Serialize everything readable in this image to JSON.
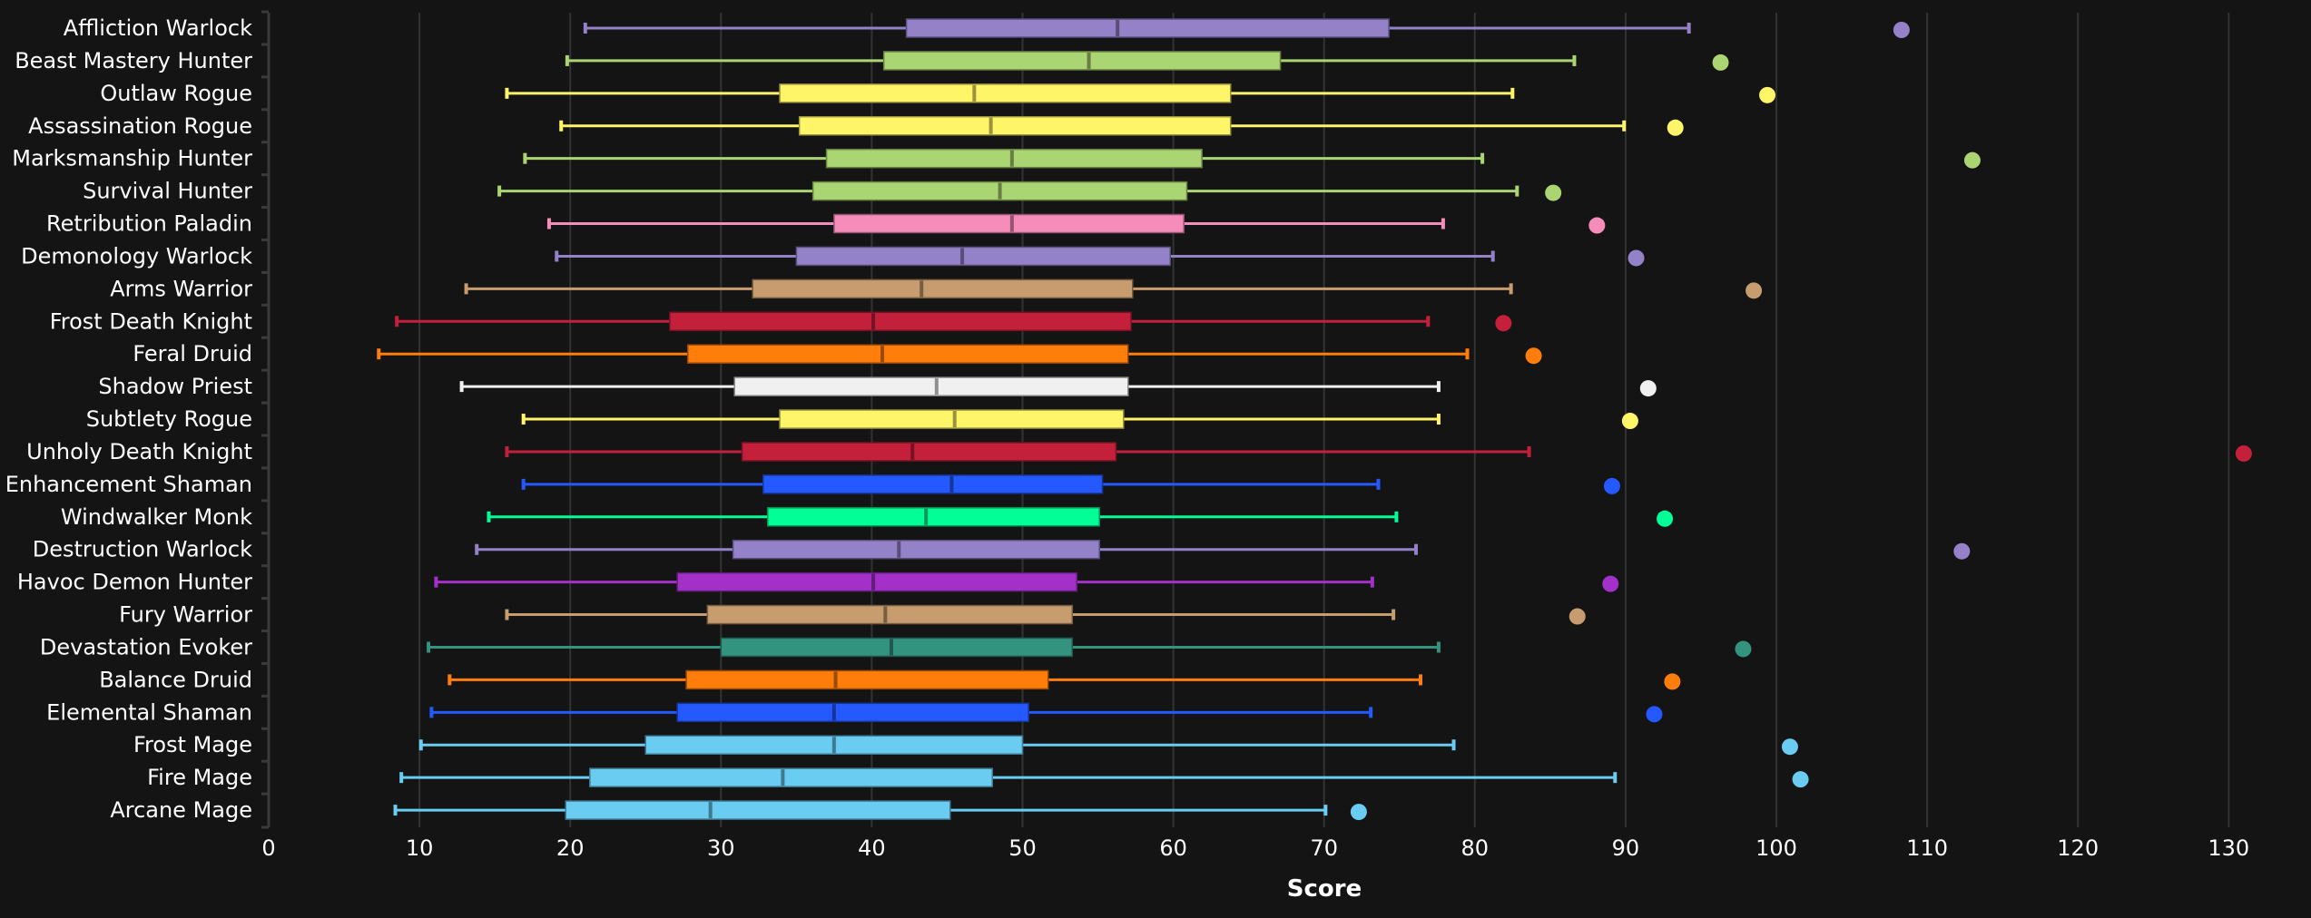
{
  "chart_data": {
    "type": "boxplot",
    "title": "",
    "xlabel": "Score",
    "ylabel": "",
    "xlim": [
      0,
      133
    ],
    "xticks": [
      0,
      10,
      20,
      30,
      40,
      50,
      60,
      70,
      80,
      90,
      100,
      110,
      120,
      130
    ],
    "grid": true,
    "legend": "none",
    "series": [
      {
        "name": "Affliction Warlock",
        "color": "#9482c9",
        "min": 21.0,
        "q1": 42.3,
        "median": 56.3,
        "q3": 74.3,
        "max": 94.2,
        "outlier": 108.3
      },
      {
        "name": "Beast Mastery Hunter",
        "color": "#abd473",
        "min": 19.8,
        "q1": 40.8,
        "median": 54.4,
        "q3": 67.1,
        "max": 86.6,
        "outlier": 96.3
      },
      {
        "name": "Outlaw Rogue",
        "color": "#fff569",
        "min": 15.8,
        "q1": 33.9,
        "median": 46.8,
        "q3": 63.8,
        "max": 82.5,
        "outlier": 99.4
      },
      {
        "name": "Assassination Rogue",
        "color": "#fff569",
        "min": 19.4,
        "q1": 35.2,
        "median": 47.9,
        "q3": 63.8,
        "max": 89.9,
        "outlier": 93.3
      },
      {
        "name": "Marksmanship Hunter",
        "color": "#abd473",
        "min": 17.0,
        "q1": 37.0,
        "median": 49.3,
        "q3": 61.9,
        "max": 80.5,
        "outlier": 113.0
      },
      {
        "name": "Survival Hunter",
        "color": "#abd473",
        "min": 15.3,
        "q1": 36.1,
        "median": 48.5,
        "q3": 60.9,
        "max": 82.8,
        "outlier": 85.2
      },
      {
        "name": "Retribution Paladin",
        "color": "#f58cba",
        "min": 18.6,
        "q1": 37.5,
        "median": 49.3,
        "q3": 60.7,
        "max": 77.9,
        "outlier": 88.1
      },
      {
        "name": "Demonology Warlock",
        "color": "#9482c9",
        "min": 19.1,
        "q1": 35.0,
        "median": 46.0,
        "q3": 59.8,
        "max": 81.2,
        "outlier": 90.7
      },
      {
        "name": "Arms Warrior",
        "color": "#c79c6e",
        "min": 13.1,
        "q1": 32.1,
        "median": 43.3,
        "q3": 57.3,
        "max": 82.4,
        "outlier": 98.5
      },
      {
        "name": "Frost Death Knight",
        "color": "#c41f3b",
        "min": 8.5,
        "q1": 26.6,
        "median": 40.1,
        "q3": 57.2,
        "max": 76.9,
        "outlier": 81.9
      },
      {
        "name": "Feral Druid",
        "color": "#ff7d0a",
        "min": 7.3,
        "q1": 27.8,
        "median": 40.7,
        "q3": 57.0,
        "max": 79.5,
        "outlier": 83.9
      },
      {
        "name": "Shadow Priest",
        "color": "#f0f0f0",
        "min": 12.8,
        "q1": 30.9,
        "median": 44.3,
        "q3": 57.0,
        "max": 77.6,
        "outlier": 91.5
      },
      {
        "name": "Subtlety Rogue",
        "color": "#fff569",
        "min": 16.9,
        "q1": 33.9,
        "median": 45.5,
        "q3": 56.7,
        "max": 77.6,
        "outlier": 90.3
      },
      {
        "name": "Unholy Death Knight",
        "color": "#c41f3b",
        "min": 15.8,
        "q1": 31.4,
        "median": 42.7,
        "q3": 56.2,
        "max": 83.6,
        "outlier": 131.0
      },
      {
        "name": "Enhancement Shaman",
        "color": "#2459ff",
        "min": 16.9,
        "q1": 32.8,
        "median": 45.3,
        "q3": 55.3,
        "max": 73.6,
        "outlier": 89.1
      },
      {
        "name": "Windwalker Monk",
        "color": "#00ff96",
        "min": 14.6,
        "q1": 33.1,
        "median": 43.6,
        "q3": 55.1,
        "max": 74.8,
        "outlier": 92.6
      },
      {
        "name": "Destruction Warlock",
        "color": "#9482c9",
        "min": 13.8,
        "q1": 30.8,
        "median": 41.8,
        "q3": 55.1,
        "max": 76.1,
        "outlier": 112.3
      },
      {
        "name": "Havoc Demon Hunter",
        "color": "#a330c9",
        "min": 11.1,
        "q1": 27.1,
        "median": 40.1,
        "q3": 53.6,
        "max": 73.2,
        "outlier": 89.0
      },
      {
        "name": "Fury Warrior",
        "color": "#c79c6e",
        "min": 15.8,
        "q1": 29.1,
        "median": 40.9,
        "q3": 53.3,
        "max": 74.6,
        "outlier": 86.8
      },
      {
        "name": "Devastation Evoker",
        "color": "#33937f",
        "min": 10.6,
        "q1": 30.0,
        "median": 41.3,
        "q3": 53.3,
        "max": 77.6,
        "outlier": 97.8
      },
      {
        "name": "Balance Druid",
        "color": "#ff7d0a",
        "min": 12.0,
        "q1": 27.7,
        "median": 37.6,
        "q3": 51.7,
        "max": 76.4,
        "outlier": 93.1
      },
      {
        "name": "Elemental Shaman",
        "color": "#2459ff",
        "min": 10.8,
        "q1": 27.1,
        "median": 37.5,
        "q3": 50.4,
        "max": 73.1,
        "outlier": 91.9
      },
      {
        "name": "Frost Mage",
        "color": "#69ccf0",
        "min": 10.1,
        "q1": 25.0,
        "median": 37.5,
        "q3": 50.0,
        "max": 78.6,
        "outlier": 100.9
      },
      {
        "name": "Fire Mage",
        "color": "#69ccf0",
        "min": 8.8,
        "q1": 21.3,
        "median": 34.1,
        "q3": 48.0,
        "max": 89.3,
        "outlier": 101.6
      },
      {
        "name": "Arcane Mage",
        "color": "#69ccf0",
        "min": 8.4,
        "q1": 19.7,
        "median": 29.3,
        "q3": 45.2,
        "max": 70.1,
        "outlier": 72.3
      }
    ]
  }
}
